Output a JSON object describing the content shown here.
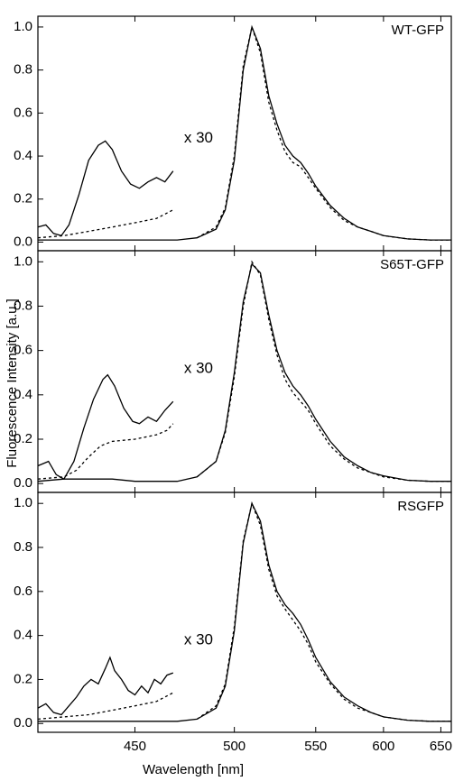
{
  "xlabel": "Wavelength [nm]",
  "ylabel": "Fluorescence Intensity [a.u.]",
  "chart_data": [
    {
      "type": "line",
      "label": "WT-GFP",
      "annotation": "x 30",
      "x_scale": "reciprocal",
      "xlim": [
        410,
        660
      ],
      "ylim": [
        -0.04,
        1.05
      ],
      "xticks": [
        450,
        500,
        550,
        600,
        650
      ],
      "show_xticklabels": false,
      "yticks": [
        {
          "value": 0,
          "label": "0.0"
        },
        0.2,
        0.4,
        0.6,
        0.8,
        {
          "value": 1,
          "label": "1.0"
        }
      ],
      "series": [
        {
          "color": "#000000",
          "style": "solid",
          "x": [
            410,
            420,
            430,
            440,
            450,
            460,
            470,
            480,
            490,
            495,
            500,
            505,
            510,
            515,
            520,
            525,
            530,
            535,
            540,
            545,
            550,
            560,
            570,
            580,
            590,
            600,
            620,
            640,
            660
          ],
          "values": [
            0.01,
            0.01,
            0.01,
            0.01,
            0.01,
            0.01,
            0.01,
            0.02,
            0.06,
            0.15,
            0.38,
            0.8,
            1.0,
            0.9,
            0.68,
            0.55,
            0.45,
            0.4,
            0.37,
            0.32,
            0.26,
            0.17,
            0.11,
            0.07,
            0.05,
            0.03,
            0.015,
            0.01,
            0.01
          ]
        },
        {
          "color": "#000000",
          "style": "dotted",
          "x": [
            480,
            490,
            495,
            500,
            505,
            510,
            515,
            520,
            525,
            530,
            535,
            540,
            545,
            550,
            560,
            570,
            580,
            590,
            600,
            620,
            640,
            660
          ],
          "values": [
            0.02,
            0.07,
            0.16,
            0.4,
            0.82,
            1.0,
            0.88,
            0.65,
            0.52,
            0.42,
            0.37,
            0.35,
            0.3,
            0.25,
            0.16,
            0.1,
            0.07,
            0.05,
            0.03,
            0.015,
            0.01,
            0.01
          ]
        },
        {
          "color": "#000000",
          "style": "solid",
          "x": [
            410,
            413,
            416,
            419,
            422,
            426,
            430,
            434,
            437,
            440,
            444,
            448,
            452,
            456,
            460,
            464,
            468
          ],
          "values": [
            0.07,
            0.08,
            0.04,
            0.03,
            0.08,
            0.22,
            0.38,
            0.45,
            0.47,
            0.43,
            0.33,
            0.27,
            0.25,
            0.28,
            0.3,
            0.28,
            0.33
          ]
        },
        {
          "color": "#000000",
          "style": "dotted",
          "x": [
            410,
            420,
            430,
            440,
            450,
            460,
            468
          ],
          "values": [
            0.02,
            0.03,
            0.05,
            0.07,
            0.09,
            0.11,
            0.15
          ]
        }
      ]
    },
    {
      "type": "line",
      "label": "S65T-GFP",
      "annotation": "x 30",
      "x_scale": "reciprocal",
      "xlim": [
        410,
        660
      ],
      "ylim": [
        -0.04,
        1.05
      ],
      "xticks": [
        450,
        500,
        550,
        600,
        650
      ],
      "show_xticklabels": false,
      "yticks": [
        {
          "value": 0,
          "label": "0.0"
        },
        0.2,
        0.4,
        0.6,
        0.8,
        {
          "value": 1,
          "label": "1.0"
        }
      ],
      "series": [
        {
          "color": "#000000",
          "style": "solid",
          "x": [
            410,
            420,
            430,
            440,
            450,
            460,
            470,
            480,
            490,
            495,
            500,
            505,
            510,
            515,
            520,
            525,
            530,
            535,
            540,
            545,
            550,
            560,
            570,
            580,
            590,
            600,
            620,
            640,
            660
          ],
          "values": [
            0.01,
            0.02,
            0.02,
            0.02,
            0.01,
            0.01,
            0.01,
            0.03,
            0.1,
            0.24,
            0.5,
            0.82,
            0.99,
            0.95,
            0.76,
            0.6,
            0.5,
            0.44,
            0.4,
            0.35,
            0.29,
            0.19,
            0.12,
            0.08,
            0.05,
            0.035,
            0.015,
            0.01,
            0.01
          ]
        },
        {
          "color": "#000000",
          "style": "dotted",
          "x": [
            480,
            490,
            495,
            500,
            505,
            510,
            515,
            520,
            525,
            530,
            535,
            540,
            545,
            550,
            560,
            570,
            580,
            590,
            600,
            620,
            640,
            660
          ],
          "values": [
            0.03,
            0.1,
            0.23,
            0.48,
            0.8,
            1.0,
            0.94,
            0.74,
            0.58,
            0.47,
            0.41,
            0.37,
            0.33,
            0.27,
            0.17,
            0.11,
            0.07,
            0.05,
            0.03,
            0.015,
            0.01,
            0.01
          ]
        },
        {
          "color": "#000000",
          "style": "solid",
          "x": [
            410,
            414,
            417,
            420,
            424,
            428,
            432,
            436,
            438,
            441,
            445,
            449,
            452,
            456,
            460,
            464,
            468
          ],
          "values": [
            0.08,
            0.1,
            0.04,
            0.02,
            0.1,
            0.25,
            0.38,
            0.47,
            0.49,
            0.44,
            0.34,
            0.28,
            0.27,
            0.3,
            0.28,
            0.33,
            0.37
          ]
        },
        {
          "color": "#000000",
          "style": "dotted",
          "x": [
            410,
            420,
            425,
            430,
            435,
            440,
            450,
            460,
            465,
            468
          ],
          "values": [
            0.02,
            0.03,
            0.06,
            0.12,
            0.17,
            0.19,
            0.2,
            0.22,
            0.24,
            0.27
          ]
        }
      ]
    },
    {
      "type": "line",
      "label": "RSGFP",
      "annotation": "x 30",
      "x_scale": "reciprocal",
      "xlim": [
        410,
        660
      ],
      "ylim": [
        -0.04,
        1.05
      ],
      "xticks": [
        450,
        500,
        550,
        600,
        650
      ],
      "show_xticklabels": true,
      "yticks": [
        {
          "value": 0,
          "label": "0.0"
        },
        0.2,
        0.4,
        0.6,
        0.8,
        {
          "value": 1,
          "label": "1.0"
        }
      ],
      "series": [
        {
          "color": "#000000",
          "style": "solid",
          "x": [
            410,
            420,
            430,
            440,
            450,
            460,
            470,
            480,
            490,
            495,
            500,
            505,
            510,
            515,
            520,
            525,
            530,
            535,
            540,
            545,
            550,
            560,
            570,
            580,
            590,
            600,
            620,
            640,
            660
          ],
          "values": [
            0.01,
            0.01,
            0.01,
            0.01,
            0.01,
            0.01,
            0.01,
            0.02,
            0.07,
            0.17,
            0.42,
            0.82,
            1.0,
            0.92,
            0.72,
            0.6,
            0.54,
            0.5,
            0.45,
            0.38,
            0.3,
            0.19,
            0.12,
            0.08,
            0.05,
            0.03,
            0.015,
            0.01,
            0.01
          ]
        },
        {
          "color": "#000000",
          "style": "dotted",
          "x": [
            480,
            490,
            495,
            500,
            505,
            510,
            515,
            520,
            525,
            530,
            535,
            540,
            545,
            550,
            560,
            570,
            580,
            590,
            600,
            620,
            640,
            660
          ],
          "values": [
            0.02,
            0.08,
            0.18,
            0.44,
            0.83,
            1.0,
            0.9,
            0.7,
            0.58,
            0.52,
            0.47,
            0.42,
            0.36,
            0.28,
            0.18,
            0.11,
            0.07,
            0.05,
            0.03,
            0.015,
            0.01,
            0.01
          ]
        },
        {
          "color": "#000000",
          "style": "solid",
          "x": [
            410,
            413,
            416,
            419,
            422,
            425,
            428,
            431,
            434,
            437,
            439,
            441,
            444,
            447,
            450,
            453,
            456,
            459,
            462,
            465,
            468
          ],
          "values": [
            0.07,
            0.09,
            0.05,
            0.04,
            0.08,
            0.12,
            0.17,
            0.2,
            0.18,
            0.25,
            0.3,
            0.24,
            0.2,
            0.15,
            0.13,
            0.17,
            0.14,
            0.2,
            0.18,
            0.22,
            0.23
          ]
        },
        {
          "color": "#000000",
          "style": "dotted",
          "x": [
            410,
            420,
            430,
            440,
            450,
            460,
            468
          ],
          "values": [
            0.02,
            0.03,
            0.04,
            0.06,
            0.08,
            0.1,
            0.14
          ]
        }
      ]
    }
  ]
}
